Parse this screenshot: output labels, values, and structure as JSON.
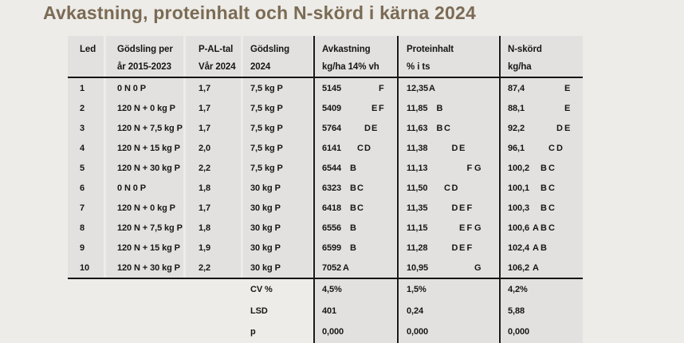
{
  "title": "Avkastning, proteinhalt och N-skörd i kärna 2024",
  "colors": {
    "page_background": "#EDECE8",
    "cell_background": "#E2E1DF",
    "title_color": "#7B6B55",
    "text_color": "#161616",
    "line_color": "#1A1A1A"
  },
  "table": {
    "columns": [
      {
        "id": "led",
        "label_lines": [
          "Led",
          ""
        ]
      },
      {
        "id": "godsling-per-ar",
        "label_lines": [
          "Gödsling per",
          "år 2015-2023"
        ]
      },
      {
        "id": "p-al-tal",
        "label_lines": [
          "P-AL-tal",
          "Vår 2024"
        ]
      },
      {
        "id": "godsling-2024",
        "label_lines": [
          "Gödsling",
          "2024"
        ]
      },
      {
        "id": "avkastning",
        "label_lines": [
          "Avkastning",
          "kg/ha 14% vh"
        ]
      },
      {
        "id": "proteinhalt",
        "label_lines": [
          "Proteinhalt",
          "% i ts"
        ]
      },
      {
        "id": "nskord",
        "label_lines": [
          "N-skörd",
          "kg/ha"
        ]
      }
    ],
    "rows": [
      {
        "led": "1",
        "godsling_per_ar": "0 N 0 P",
        "pal": "1,7",
        "godsling_2024": "7,5 kg P",
        "avkastning": {
          "value": "5145",
          "letters": "F"
        },
        "proteinhalt": {
          "value": "12,35",
          "letters": "A"
        },
        "nskord": {
          "value": "87,4",
          "letters": "E"
        }
      },
      {
        "led": "2",
        "godsling_per_ar": "120 N + 0 kg P",
        "pal": "1,7",
        "godsling_2024": "7,5 kg P",
        "avkastning": {
          "value": "5409",
          "letters": "EF"
        },
        "proteinhalt": {
          "value": "11,85",
          "letters": "B"
        },
        "nskord": {
          "value": "88,1",
          "letters": "E"
        }
      },
      {
        "led": "3",
        "godsling_per_ar": "120 N + 7,5 kg P",
        "pal": "1,7",
        "godsling_2024": "7,5 kg P",
        "avkastning": {
          "value": "5764",
          "letters": "DE"
        },
        "proteinhalt": {
          "value": "11,63",
          "letters": "BC"
        },
        "nskord": {
          "value": "92,2",
          "letters": "DE"
        }
      },
      {
        "led": "4",
        "godsling_per_ar": "120 N + 15 kg P",
        "pal": "2,0",
        "godsling_2024": "7,5 kg P",
        "avkastning": {
          "value": "6141",
          "letters": "CD"
        },
        "proteinhalt": {
          "value": "11,38",
          "letters": "DE"
        },
        "nskord": {
          "value": "96,1",
          "letters": "CD"
        }
      },
      {
        "led": "5",
        "godsling_per_ar": "120 N + 30 kg P",
        "pal": "2,2",
        "godsling_2024": "7,5 kg P",
        "avkastning": {
          "value": "6544",
          "letters": "B"
        },
        "proteinhalt": {
          "value": "11,13",
          "letters": "FG"
        },
        "nskord": {
          "value": "100,2",
          "letters": "BC"
        }
      },
      {
        "led": "6",
        "godsling_per_ar": "0 N 0 P",
        "pal": "1,8",
        "godsling_2024": "30 kg P",
        "avkastning": {
          "value": "6323",
          "letters": "BC"
        },
        "proteinhalt": {
          "value": "11,50",
          "letters": "CD"
        },
        "nskord": {
          "value": "100,1",
          "letters": "BC"
        }
      },
      {
        "led": "7",
        "godsling_per_ar": "120 N + 0 kg P",
        "pal": "1,7",
        "godsling_2024": "30 kg P",
        "avkastning": {
          "value": "6418",
          "letters": "BC"
        },
        "proteinhalt": {
          "value": "11,35",
          "letters": "DEF"
        },
        "nskord": {
          "value": "100,3",
          "letters": "BC"
        }
      },
      {
        "led": "8",
        "godsling_per_ar": "120 N + 7,5 kg P",
        "pal": "1,8",
        "godsling_2024": "30 kg P",
        "avkastning": {
          "value": "6556",
          "letters": "B"
        },
        "proteinhalt": {
          "value": "11,15",
          "letters": "EFG"
        },
        "nskord": {
          "value": "100,6",
          "letters": "ABC"
        }
      },
      {
        "led": "9",
        "godsling_per_ar": "120 N + 15 kg P",
        "pal": "1,9",
        "godsling_2024": "30 kg P",
        "avkastning": {
          "value": "6599",
          "letters": "B"
        },
        "proteinhalt": {
          "value": "11,28",
          "letters": "DEF"
        },
        "nskord": {
          "value": "102,4",
          "letters": "AB"
        }
      },
      {
        "led": "10",
        "godsling_per_ar": "120 N + 30 kg P",
        "pal": "2,2",
        "godsling_2024": "30 kg P",
        "avkastning": {
          "value": "7052",
          "letters": "A"
        },
        "proteinhalt": {
          "value": "10,95",
          "letters": "G"
        },
        "nskord": {
          "value": "106,2",
          "letters": "A"
        }
      }
    ],
    "stats_rows": [
      {
        "label": "CV %",
        "avkastning": "4,5%",
        "proteinhalt": "1,5%",
        "nskord": "4,2%"
      },
      {
        "label": "LSD",
        "avkastning": "401",
        "proteinhalt": "0,24",
        "nskord": "5,88"
      },
      {
        "label": "p",
        "avkastning": "0,000",
        "proteinhalt": "0,000",
        "nskord": "0,000"
      }
    ]
  }
}
